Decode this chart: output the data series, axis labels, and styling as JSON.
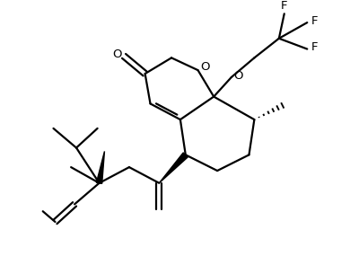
{
  "background": "#ffffff",
  "line_color": "#000000",
  "line_width": 1.6,
  "fig_width": 3.9,
  "fig_height": 2.85,
  "dpi": 100,
  "xlim": [
    0.0,
    9.0
  ],
  "ylim": [
    0.5,
    7.5
  ]
}
